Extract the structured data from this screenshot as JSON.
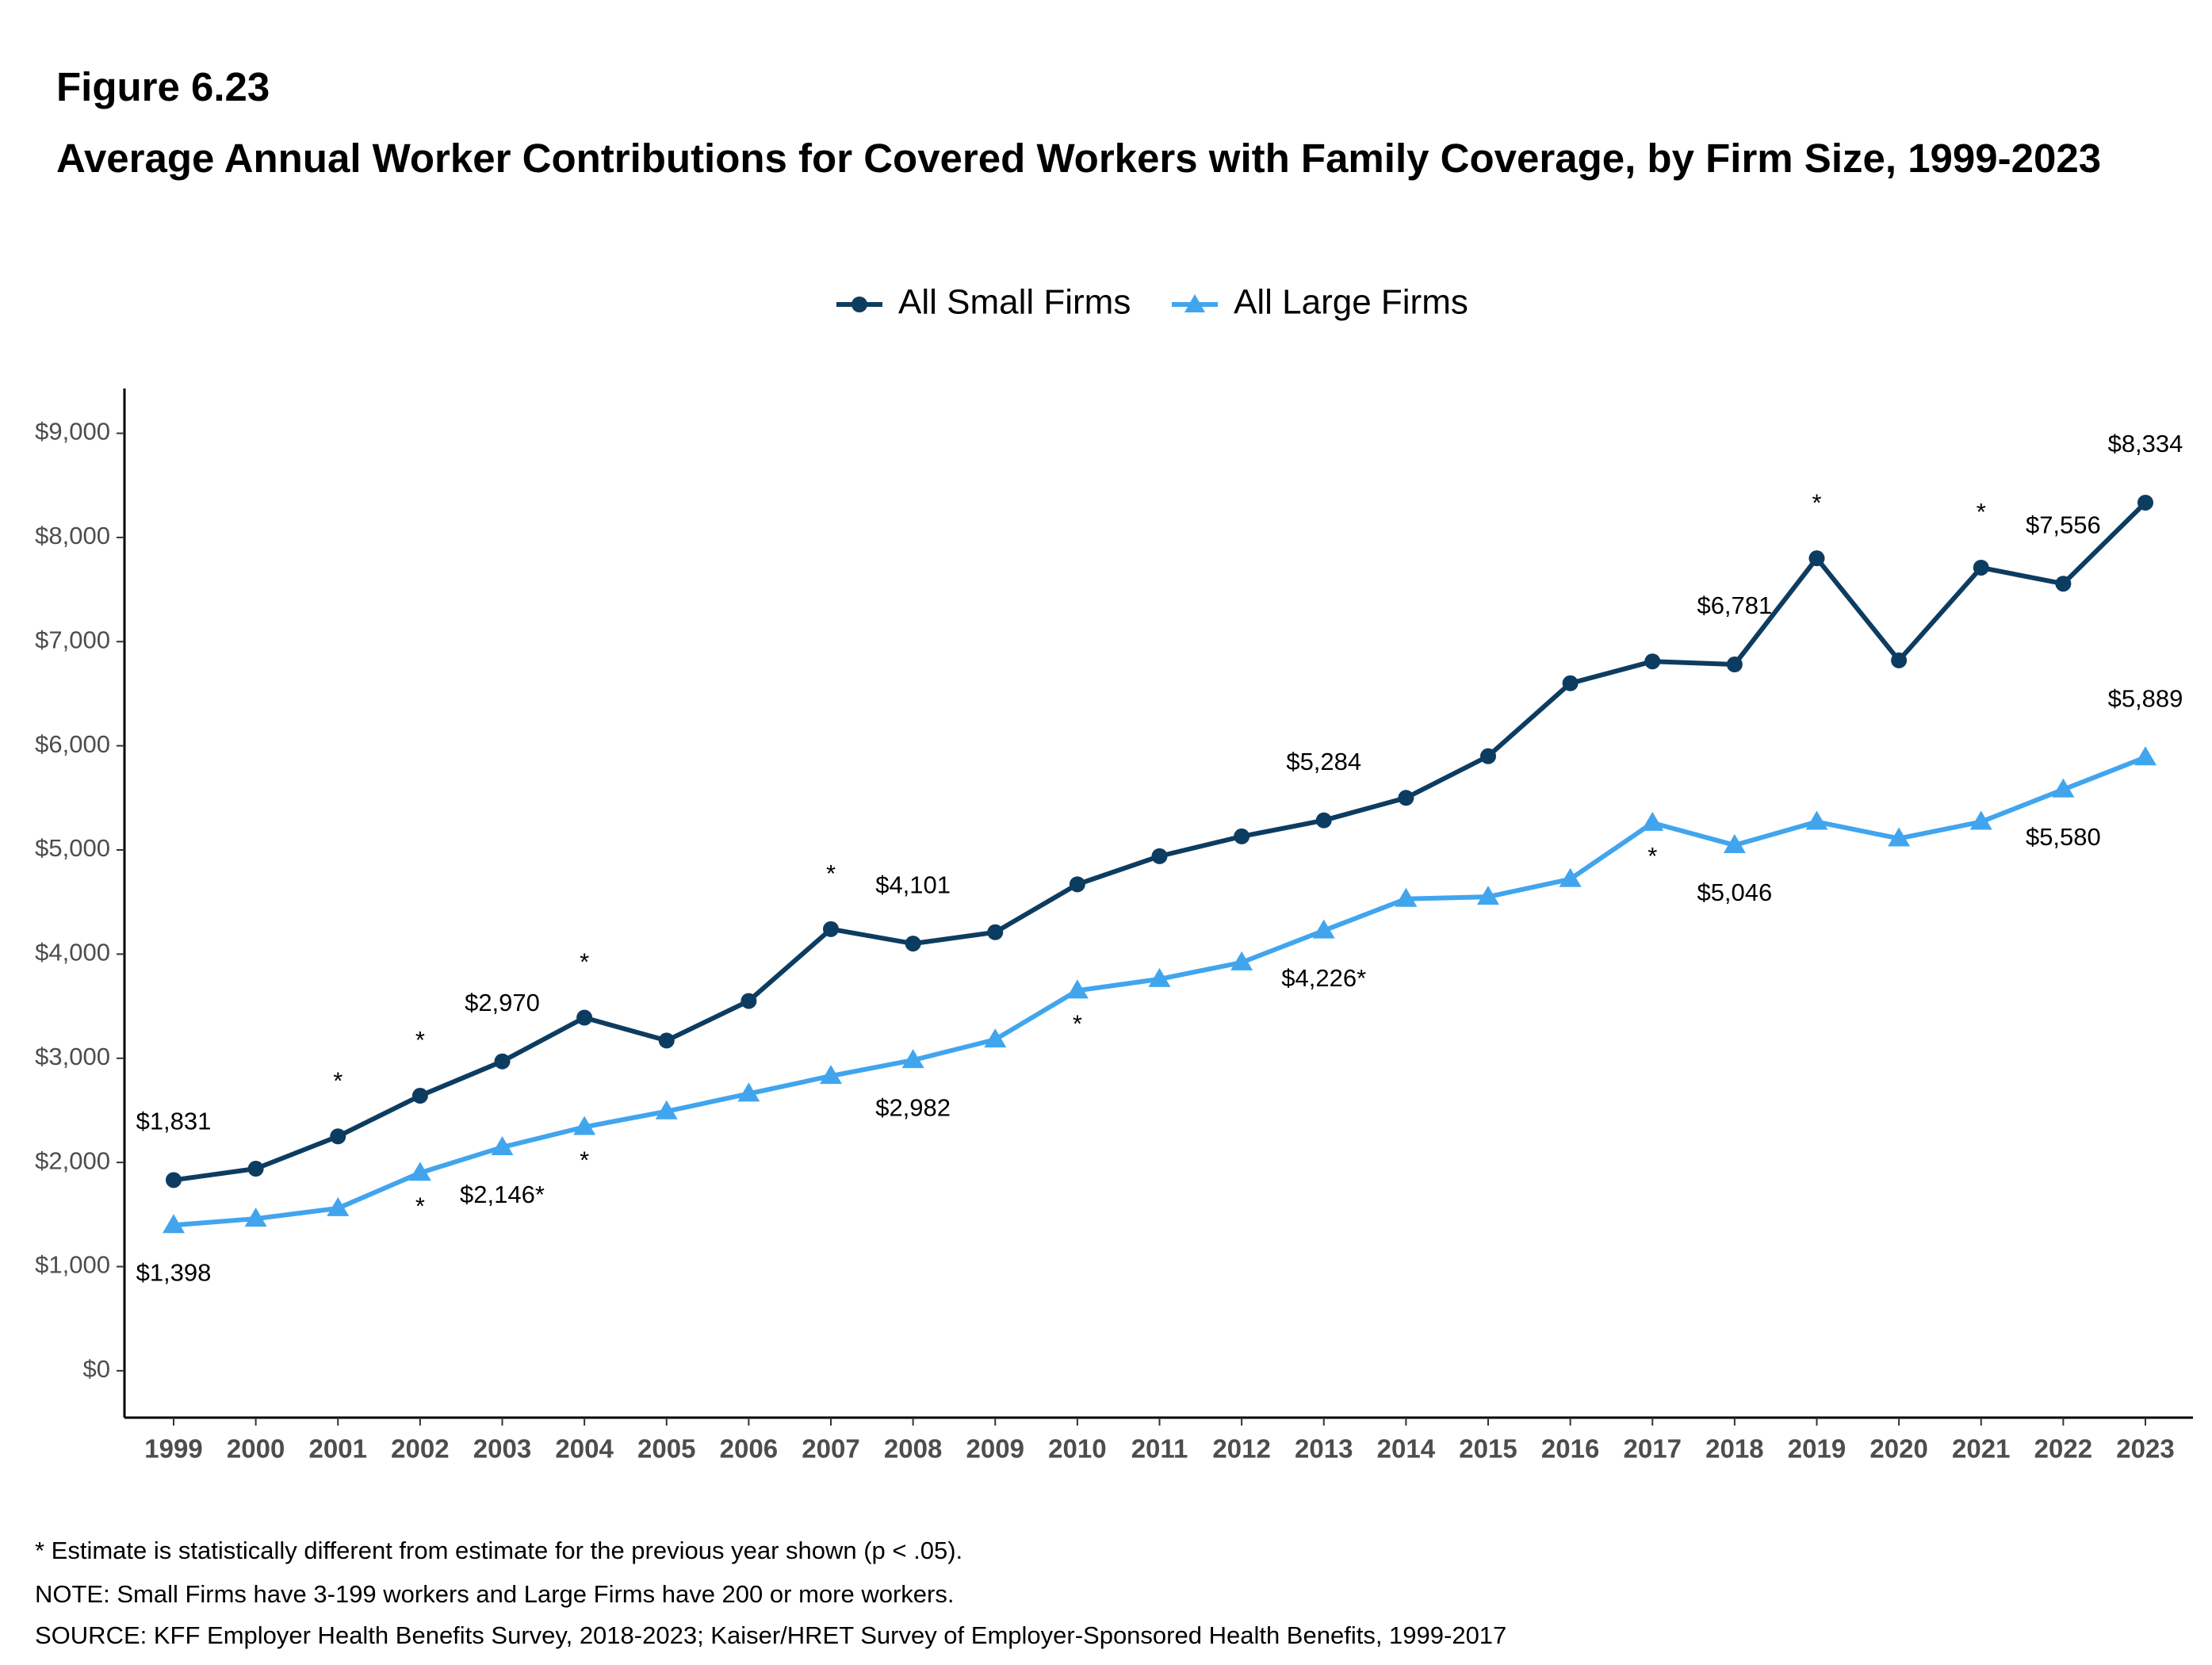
{
  "chart_data": {
    "type": "line",
    "figure_label": "Figure 6.23",
    "title": "Average Annual Worker Contributions for Covered Workers with Family Coverage, by Firm Size, 1999-2023",
    "categories": [
      "1999",
      "2000",
      "2001",
      "2002",
      "2003",
      "2004",
      "2005",
      "2006",
      "2007",
      "2008",
      "2009",
      "2010",
      "2011",
      "2012",
      "2013",
      "2014",
      "2015",
      "2016",
      "2017",
      "2018",
      "2019",
      "2020",
      "2021",
      "2022",
      "2023"
    ],
    "series": [
      {
        "name": "All Small Firms",
        "color": "#0d3c61",
        "marker": "circle",
        "values": [
          1831,
          1940,
          2250,
          2640,
          2970,
          3390,
          3170,
          3550,
          4240,
          4101,
          4210,
          4670,
          4940,
          5130,
          5284,
          5500,
          5900,
          6600,
          6810,
          6781,
          7800,
          6820,
          7710,
          7556,
          8334
        ],
        "value_labels": [
          "$1,831",
          null,
          null,
          null,
          "$2,970",
          null,
          null,
          null,
          null,
          "$4,101",
          null,
          null,
          null,
          null,
          "$5,284",
          null,
          null,
          null,
          null,
          "$6,781",
          null,
          null,
          null,
          "$7,556",
          "$8,334"
        ],
        "notes": [
          null,
          null,
          "*",
          "*",
          null,
          "*",
          null,
          null,
          "*",
          null,
          null,
          null,
          null,
          null,
          null,
          null,
          null,
          null,
          null,
          null,
          "*",
          null,
          "*",
          null,
          null
        ]
      },
      {
        "name": "All Large Firms",
        "color": "#41a5ee",
        "marker": "triangle",
        "values": [
          1398,
          1460,
          1560,
          1900,
          2146,
          2340,
          2490,
          2660,
          2830,
          2982,
          3180,
          3650,
          3760,
          3920,
          4226,
          4530,
          4550,
          4720,
          5260,
          5046,
          5270,
          5110,
          5270,
          5580,
          5889
        ],
        "value_labels": [
          "$1,398",
          null,
          null,
          null,
          "$2,146*",
          null,
          null,
          null,
          null,
          "$2,982",
          null,
          null,
          null,
          null,
          "$4,226*",
          null,
          null,
          null,
          null,
          "$5,046",
          null,
          null,
          null,
          "$5,580",
          "$5,889"
        ],
        "notes": [
          null,
          null,
          null,
          "*",
          null,
          "*",
          null,
          null,
          null,
          null,
          null,
          "*",
          null,
          null,
          null,
          null,
          null,
          null,
          "*",
          null,
          null,
          null,
          null,
          null,
          null
        ]
      }
    ],
    "ylim": [
      -450,
      9430
    ],
    "yticks": [
      {
        "value": 0,
        "label": "$0"
      },
      {
        "value": 1000,
        "label": "$1,000"
      },
      {
        "value": 2000,
        "label": "$2,000"
      },
      {
        "value": 3000,
        "label": "$3,000"
      },
      {
        "value": 4000,
        "label": "$4,000"
      },
      {
        "value": 5000,
        "label": "$5,000"
      },
      {
        "value": 6000,
        "label": "$6,000"
      },
      {
        "value": 7000,
        "label": "$7,000"
      },
      {
        "value": 8000,
        "label": "$8,000"
      },
      {
        "value": 9000,
        "label": "$9,000"
      }
    ],
    "grid": false,
    "legend": "top",
    "footnotes": [
      "* Estimate is statistically different from estimate for the previous year shown (p < .05).",
      "NOTE: Small Firms have 3-199 workers and Large Firms have 200 or more workers.",
      "SOURCE: KFF Employer Health Benefits Survey, 2018-2023; Kaiser/HRET Survey of Employer-Sponsored Health Benefits, 1999-2017"
    ]
  }
}
